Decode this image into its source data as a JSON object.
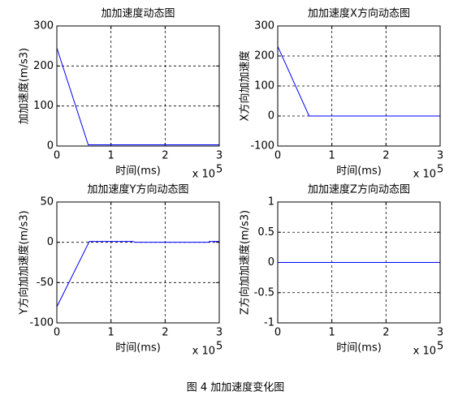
{
  "chart_data": [
    {
      "type": "line",
      "title": "加加速度动态图",
      "xlabel": "时间(ms)",
      "ylabel": "加加速度(m/s3)",
      "x_scale_label": "x 10",
      "x_scale_exponent": "5",
      "x": [
        0,
        0.58,
        3
      ],
      "values": [
        245,
        3,
        3
      ],
      "color": "#0000ff",
      "xlim": [
        0,
        3
      ],
      "xticks": [
        0,
        1,
        2,
        3
      ],
      "ylim": [
        0,
        300
      ],
      "yticks": [
        0,
        100,
        200,
        300
      ],
      "grid": true
    },
    {
      "type": "line",
      "title": "加加速度X方向动态图",
      "xlabel": "时间(ms)",
      "ylabel": "X方向加加速度",
      "x_scale_label": "x 10",
      "x_scale_exponent": "5",
      "x": [
        0,
        0.58,
        3
      ],
      "values": [
        232,
        0,
        0
      ],
      "color": "#0000ff",
      "xlim": [
        0,
        3
      ],
      "xticks": [
        0,
        1,
        2,
        3
      ],
      "ylim": [
        -100,
        300
      ],
      "yticks": [
        -100,
        0,
        100,
        200,
        300
      ],
      "grid": true
    },
    {
      "type": "line",
      "title": "加加速度Y方向动态图",
      "xlabel": "时间(ms)",
      "ylabel": "Y方向加加速度(m/s3)",
      "x_scale_label": "x 10",
      "x_scale_exponent": "5",
      "x": [
        0,
        0.6,
        1.4,
        1.45,
        2.8,
        2.82,
        3
      ],
      "values": [
        -80,
        1,
        1,
        0,
        0,
        1,
        1
      ],
      "color": "#0000ff",
      "xlim": [
        0,
        3
      ],
      "xticks": [
        0,
        1,
        2,
        3
      ],
      "ylim": [
        -100,
        50
      ],
      "yticks": [
        -100,
        -50,
        0,
        50
      ],
      "grid": true
    },
    {
      "type": "line",
      "title": "加加速度Z方向动态图",
      "xlabel": "时间(ms)",
      "ylabel": "Z方向加加速度(m/s3)",
      "x_scale_label": "x 10",
      "x_scale_exponent": "5",
      "x": [
        0,
        3
      ],
      "values": [
        0,
        0
      ],
      "color": "#0000ff",
      "xlim": [
        0,
        3
      ],
      "xticks": [
        0,
        1,
        2,
        3
      ],
      "ylim": [
        -1,
        1
      ],
      "yticks": [
        -1,
        -0.5,
        0,
        0.5,
        1
      ],
      "grid": true
    }
  ],
  "caption": "图 4 加加速度变化图"
}
